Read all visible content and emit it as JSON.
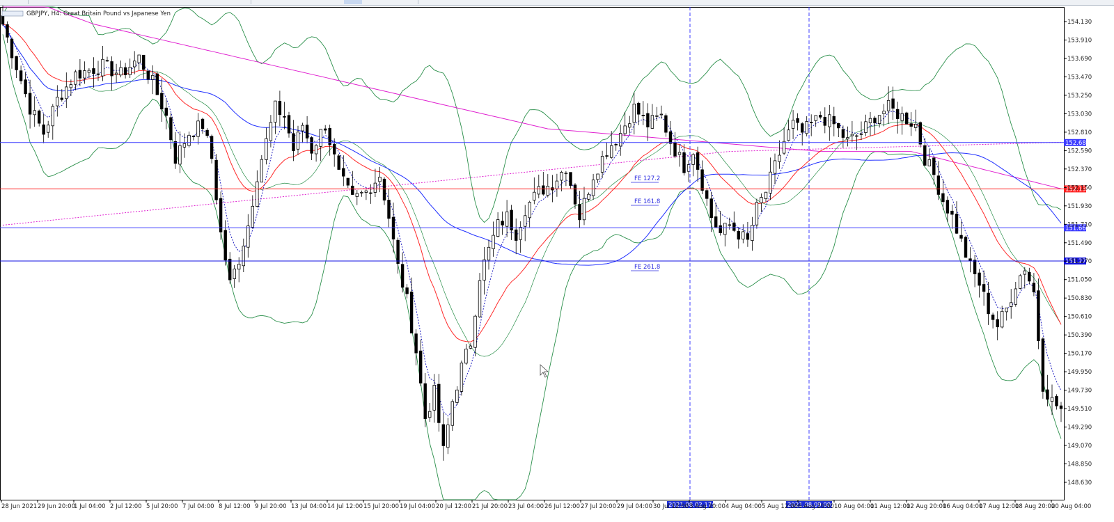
{
  "chart_data": {
    "type": "candlestick",
    "title": "GBPJPY, H4:  Great Britain Pound vs Japanese Yen",
    "ylim": [
      148.45,
      154.28
    ],
    "y_ticks": [
      "154.130",
      "153.910",
      "153.690",
      "153.470",
      "153.250",
      "153.030",
      "152.810",
      "152.590",
      "152.370",
      "152.150",
      "151.930",
      "151.710",
      "151.490",
      "151.270",
      "151.050",
      "150.830",
      "150.610",
      "150.390",
      "150.170",
      "149.950",
      "149.730",
      "149.510",
      "149.290",
      "149.070",
      "148.850",
      "148.630"
    ],
    "x_ticks": [
      "28 Jun 2021",
      "29 Jun 20:00",
      "1 Jul 04:00",
      "2 Jul 12:00",
      "5 Jul 20:00",
      "7 Jul 04:00",
      "8 Jul 12:00",
      "9 Jul 20:00",
      "13 Jul 04:00",
      "14 Jul 12:00",
      "15 Jul 20:00",
      "19 Jul 04:00",
      "20 Jul 12:00",
      "21 Jul 20:00",
      "23 Jul 04:00",
      "26 Jul 12:00",
      "27 Jul 20:00",
      "29 Jul 04:00",
      "30 Jul 12:00",
      "3 Aug 20:00",
      "4 Aug 04:00",
      "5 Aug 12:00",
      "6 Aug 20:00",
      "10 Aug 04:00",
      "11 Aug 12:00",
      "12 Aug 20:00",
      "16 Aug 04:00",
      "17 Aug 12:00",
      "18 Aug 20:00",
      "20 Aug 04:00"
    ],
    "close_path": [
      [
        0,
        154.1
      ],
      [
        3,
        153.6
      ],
      [
        6,
        153.1
      ],
      [
        9,
        152.8
      ],
      [
        12,
        153.2
      ],
      [
        16,
        153.5
      ],
      [
        22,
        153.6
      ],
      [
        26,
        153.5
      ],
      [
        30,
        153.7
      ],
      [
        33,
        153.4
      ],
      [
        36,
        153.0
      ],
      [
        38,
        152.5
      ],
      [
        41,
        152.8
      ],
      [
        44,
        152.9
      ],
      [
        46,
        152.5
      ],
      [
        48,
        151.6
      ],
      [
        50,
        151.0
      ],
      [
        52,
        151.3
      ],
      [
        54,
        151.7
      ],
      [
        56,
        152.3
      ],
      [
        58,
        152.7
      ],
      [
        60,
        153.1
      ],
      [
        62,
        153.0
      ],
      [
        64,
        152.6
      ],
      [
        66,
        152.9
      ],
      [
        68,
        152.6
      ],
      [
        71,
        152.9
      ],
      [
        74,
        152.3
      ],
      [
        77,
        152.0
      ],
      [
        80,
        152.1
      ],
      [
        83,
        152.3
      ],
      [
        85,
        151.8
      ],
      [
        87,
        151.2
      ],
      [
        89,
        150.8
      ],
      [
        91,
        150.2
      ],
      [
        93,
        149.4
      ],
      [
        95,
        149.7
      ],
      [
        97,
        149.0
      ],
      [
        99,
        149.6
      ],
      [
        101,
        150.0
      ],
      [
        103,
        150.3
      ],
      [
        105,
        151.1
      ],
      [
        107,
        151.4
      ],
      [
        109,
        151.7
      ],
      [
        111,
        151.8
      ],
      [
        113,
        151.6
      ],
      [
        115,
        151.9
      ],
      [
        118,
        152.1
      ],
      [
        121,
        152.2
      ],
      [
        124,
        152.4
      ],
      [
        127,
        151.8
      ],
      [
        130,
        152.3
      ],
      [
        133,
        152.6
      ],
      [
        136,
        152.8
      ],
      [
        139,
        153.1
      ],
      [
        142,
        152.9
      ],
      [
        145,
        153.0
      ],
      [
        147,
        152.7
      ],
      [
        150,
        152.4
      ],
      [
        152,
        152.6
      ],
      [
        154,
        152.2
      ],
      [
        156,
        151.8
      ],
      [
        158,
        151.6
      ],
      [
        160,
        151.7
      ],
      [
        162,
        151.6
      ],
      [
        164,
        151.5
      ],
      [
        166,
        151.9
      ],
      [
        168,
        152.1
      ],
      [
        170,
        152.4
      ],
      [
        172,
        152.7
      ],
      [
        174,
        152.9
      ],
      [
        176,
        152.8
      ],
      [
        178,
        152.9
      ],
      [
        180,
        153.0
      ],
      [
        183,
        152.9
      ],
      [
        186,
        152.7
      ],
      [
        189,
        152.8
      ],
      [
        192,
        153.0
      ],
      [
        195,
        153.1
      ],
      [
        198,
        153.0
      ],
      [
        201,
        152.9
      ],
      [
        203,
        152.5
      ],
      [
        205,
        152.3
      ],
      [
        207,
        152.0
      ],
      [
        209,
        151.8
      ],
      [
        211,
        151.5
      ],
      [
        213,
        151.2
      ],
      [
        215,
        151.0
      ],
      [
        217,
        150.7
      ],
      [
        219,
        150.5
      ],
      [
        221,
        150.7
      ],
      [
        223,
        151.0
      ],
      [
        225,
        151.2
      ],
      [
        227,
        150.9
      ],
      [
        229,
        149.8
      ],
      [
        231,
        149.6
      ],
      [
        233,
        149.5
      ]
    ],
    "horizontal_lines": [
      {
        "price": "152.686",
        "color": "#3c3cff"
      },
      {
        "price": "152.133",
        "color": "#ff2020"
      },
      {
        "price": "151.668",
        "color": "#3c3cff"
      },
      {
        "price": "151.272",
        "color": "#1010e0"
      }
    ],
    "fe_labels": [
      "FE  127.2",
      "FE  161.8",
      "FE  261.8"
    ],
    "vertical_date_tags": [
      "2021.08.02 17:05",
      "2021.08.09 00:00"
    ],
    "colors": {
      "bollinger": "#2a8f4a",
      "ema_red": "#ff2a2a",
      "ma_blue": "#2030ff",
      "ma_magenta": "#e020d0",
      "dotted_blue": "#2020c0"
    }
  }
}
